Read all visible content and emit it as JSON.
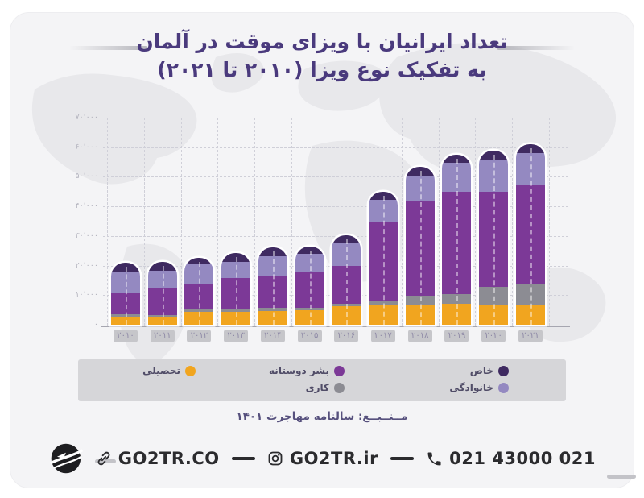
{
  "title": {
    "line1": "تعداد ایرانیان با ویزای موقت در آلمان",
    "line2": "به تفکیک نوع ویزا (۲۰۱۰ تا ۲۰۲۱)"
  },
  "chart_data": {
    "type": "bar",
    "stacked": true,
    "title": "تعداد ایرانیان با ویزای موقت در آلمان به تفکیک نوع ویزا (۲۰۱۰ تا ۲۰۲۱)",
    "categories": [
      "۲۰۱۰",
      "۲۰۱۱",
      "۲۰۱۲",
      "۲۰۱۳",
      "۲۰۱۴",
      "۲۰۱۵",
      "۲۰۱۶",
      "۲۰۱۷",
      "۲۰۱۸",
      "۲۰۱۹",
      "۲۰۲۰",
      "۲۰۲۱"
    ],
    "categories_western": [
      2010,
      2011,
      2012,
      2013,
      2014,
      2015,
      2016,
      2017,
      2018,
      2019,
      2020,
      2021
    ],
    "series": [
      {
        "name": "تحصیلی",
        "key": "education",
        "color": "#f1a51f",
        "values": [
          2700,
          2700,
          4400,
          4400,
          4600,
          4900,
          6300,
          6500,
          6500,
          7100,
          6800,
          6800
        ]
      },
      {
        "name": "کاری",
        "key": "work",
        "color": "#8c8c93",
        "values": [
          800,
          500,
          800,
          800,
          1100,
          800,
          800,
          1600,
          3300,
          3300,
          5900,
          6800
        ]
      },
      {
        "name": "بشر دوستانه",
        "key": "humanitarian",
        "color": "#7c3997",
        "values": [
          7400,
          9300,
          8400,
          10600,
          10900,
          12300,
          12800,
          26700,
          32200,
          34600,
          32200,
          33500
        ]
      },
      {
        "name": "خانوادگی",
        "key": "family",
        "color": "#9489c1",
        "values": [
          7100,
          5700,
          6800,
          5400,
          6500,
          6000,
          7600,
          7400,
          8400,
          9800,
          10600,
          10900
        ]
      },
      {
        "name": "خاص",
        "key": "special",
        "color": "#3f2a61",
        "values": [
          3000,
          3000,
          2200,
          3000,
          3000,
          2500,
          2700,
          2700,
          3000,
          2700,
          3300,
          3000
        ]
      }
    ],
    "y_ticks": [
      {
        "label": "۰",
        "value": 0
      },
      {
        "label": "۱۰٬۰۰۰",
        "value": 10000
      },
      {
        "label": "۲۰٬۰۰۰",
        "value": 20000
      },
      {
        "label": "۳۰٬۰۰۰",
        "value": 30000
      },
      {
        "label": "۴۰٬۰۰۰",
        "value": 40000
      },
      {
        "label": "۵۰٬۰۰۰",
        "value": 50000
      },
      {
        "label": "۶۰٬۰۰۰",
        "value": 60000
      },
      {
        "label": "۷۰٬۰۰۰",
        "value": 70000
      }
    ],
    "ylim": [
      0,
      70000
    ],
    "grid": true,
    "legend_position": "bottom"
  },
  "source": {
    "text": "مــنــبــع: سالنامه مهاجرت ۱۴۰۱"
  },
  "footer": {
    "website": "GO2TR.CO",
    "instagram": "GO2TR.ir",
    "phone": "021 43000 021"
  },
  "colors": {
    "accent_title": "#4a3a7d",
    "frame_bg": "#f4f4f6",
    "legend_band": "#d6d6d9",
    "education": "#f1a51f",
    "work": "#8c8c93",
    "humanitarian": "#7c3997",
    "family": "#9489c1",
    "special": "#3f2a61"
  }
}
